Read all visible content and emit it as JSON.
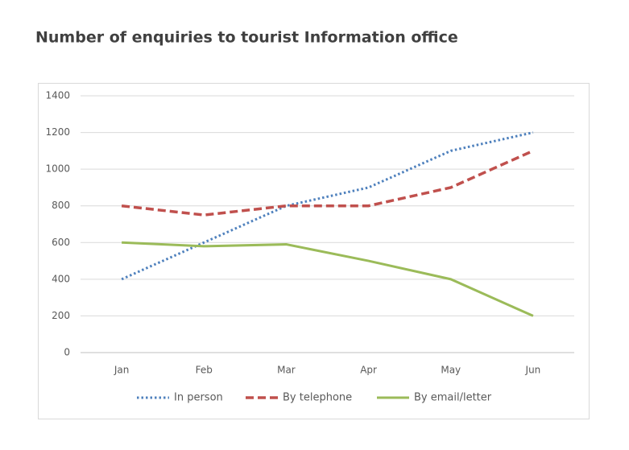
{
  "chart_data": {
    "type": "line",
    "title": "Number of enquiries to tourist Information office",
    "categories": [
      "Jan",
      "Feb",
      "Mar",
      "Apr",
      "May",
      "Jun"
    ],
    "series": [
      {
        "name": "In person",
        "color": "#4f81bd",
        "style": "dotted",
        "values": [
          400,
          600,
          800,
          900,
          1100,
          1200
        ]
      },
      {
        "name": "By telephone",
        "color": "#c0504d",
        "style": "dashed",
        "values": [
          800,
          750,
          800,
          800,
          900,
          1100
        ]
      },
      {
        "name": "By email/letter",
        "color": "#9bbb59",
        "style": "solid",
        "values": [
          600,
          580,
          590,
          500,
          400,
          200
        ]
      }
    ],
    "ylim": [
      0,
      1400
    ],
    "yticks": [
      0,
      200,
      400,
      600,
      800,
      1000,
      1200,
      1400
    ],
    "grid": true,
    "legend": "bottom"
  }
}
